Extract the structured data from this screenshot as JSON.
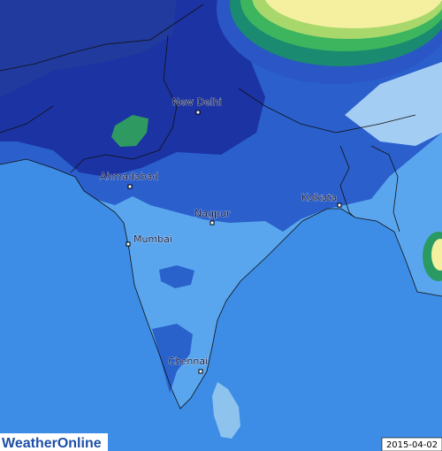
{
  "cities": [
    {
      "label": "New Delhi"
    },
    {
      "label": "Ahmadabad"
    },
    {
      "label": "Nagpur"
    },
    {
      "label": "Kolkata"
    },
    {
      "label": "Mumbai"
    },
    {
      "label": "Chennai"
    }
  ],
  "logo": "WeatherOnline",
  "date": "2015-04-02"
}
